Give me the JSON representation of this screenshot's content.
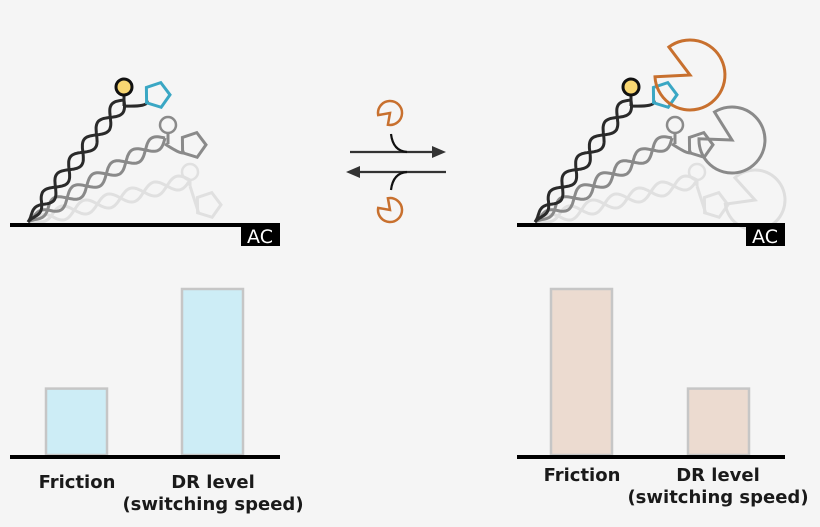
{
  "surface_label": "AC",
  "colors": {
    "background": "#f5f5f5",
    "ligand": "#3aa7c4",
    "binder": "#c8702e",
    "anchor_ball": "#f9d772",
    "bar_left": "#cdedf6",
    "bar_right": "#ecdbd0",
    "bar_border": "#c6c6c6"
  },
  "left_panel": {
    "bars": [
      {
        "label": "Friction",
        "value": 0.4
      },
      {
        "label": "DR level",
        "sublabel": "(switching speed)",
        "value": 1.0
      }
    ]
  },
  "right_panel": {
    "bars": [
      {
        "label": "Friction",
        "value": 1.0
      },
      {
        "label": "DR level",
        "sublabel": "(switching speed)",
        "value": 0.4
      }
    ]
  },
  "equilibrium": {
    "forward_arrow": "right",
    "reverse_arrow": "left"
  }
}
